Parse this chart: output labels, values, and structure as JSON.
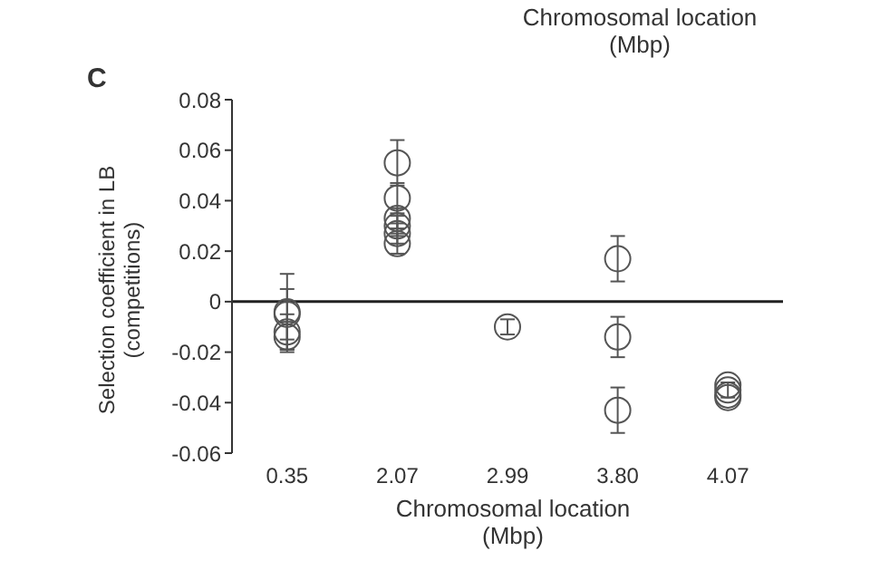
{
  "chart_data": {
    "type": "scatter",
    "annotations": [
      "C",
      "Chromosomal location (Mbp)"
    ],
    "xlabel": "Chromosomal location (Mbp)",
    "ylabel": "Selection coefficient in LB (competitions)",
    "categories": [
      "0.35",
      "2.07",
      "2.99",
      "3.80",
      "4.07"
    ],
    "series": [
      {
        "color": "#555555",
        "x": [
          "0.35",
          "0.35",
          "0.35",
          "0.35",
          "2.07",
          "2.07",
          "2.07",
          "2.07",
          "2.07",
          "2.07",
          "2.99",
          "3.80",
          "3.80",
          "3.80",
          "4.07",
          "4.07",
          "4.07",
          "4.07"
        ],
        "values": [
          -0.004,
          -0.005,
          -0.012,
          -0.014,
          0.055,
          0.041,
          0.033,
          0.03,
          0.027,
          0.023,
          -0.01,
          0.017,
          -0.014,
          -0.043,
          -0.033,
          -0.035,
          -0.037,
          -0.038
        ],
        "errors": [
          0.015,
          0.01,
          0.007,
          0.006,
          0.009,
          0.006,
          0.004,
          0.004,
          0.004,
          0.004,
          0.003,
          0.009,
          0.008,
          0.009,
          null,
          0.003,
          null,
          null
        ]
      }
    ],
    "ylim": [
      -0.06,
      0.08
    ],
    "yticks": [
      {
        "value": -0.06,
        "label": "-0.06"
      },
      {
        "value": -0.04,
        "label": "-0.04"
      },
      {
        "value": -0.02,
        "label": "-0.02"
      },
      0,
      {
        "value": 0.02,
        "label": "0.02"
      },
      {
        "value": 0.04,
        "label": "0.04"
      },
      {
        "value": 0.06,
        "label": "0.06"
      },
      {
        "value": 0.08,
        "label": "0.08"
      }
    ],
    "ref_lines": [
      {
        "axis": "y",
        "value": 0
      }
    ],
    "marker": "circle",
    "grid": false,
    "legend": false
  }
}
